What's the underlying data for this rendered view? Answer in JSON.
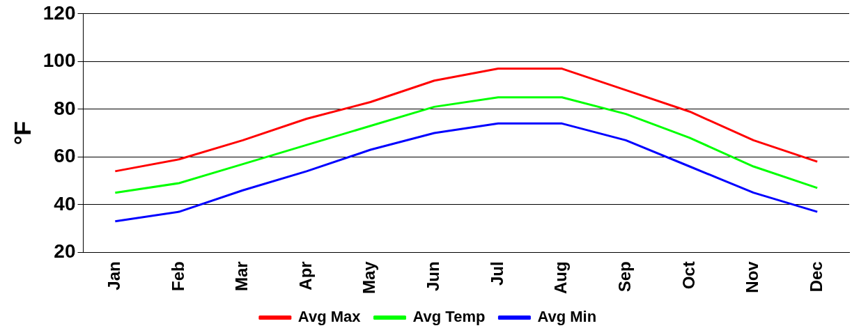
{
  "chart_data": {
    "type": "line",
    "ylabel": "°F",
    "categories": [
      "Jan",
      "Feb",
      "Mar",
      "Apr",
      "May",
      "Jun",
      "Jul",
      "Aug",
      "Sep",
      "Oct",
      "Nov",
      "Dec"
    ],
    "series": [
      {
        "name": "Avg Max",
        "color": "#ff0000",
        "values": [
          54,
          59,
          67,
          76,
          83,
          92,
          97,
          97,
          88,
          79,
          67,
          58
        ]
      },
      {
        "name": "Avg Temp",
        "color": "#00ff00",
        "values": [
          45,
          49,
          57,
          65,
          73,
          81,
          85,
          85,
          78,
          68,
          56,
          47
        ]
      },
      {
        "name": "Avg Min",
        "color": "#0000ff",
        "values": [
          33,
          37,
          46,
          54,
          63,
          70,
          74,
          74,
          67,
          56,
          45,
          37
        ]
      }
    ],
    "ylim": [
      20,
      120
    ],
    "yticks": [
      20,
      40,
      60,
      80,
      100,
      120
    ],
    "grid": "y",
    "legend": "bottom",
    "marker": "none",
    "line_style": "solid"
  }
}
